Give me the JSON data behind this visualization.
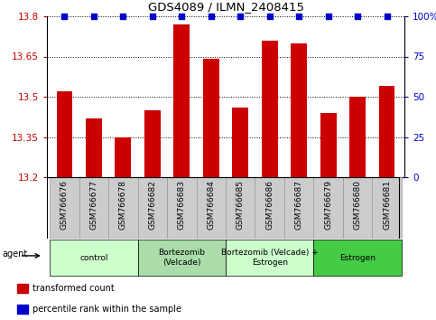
{
  "title": "GDS4089 / ILMN_2408415",
  "samples": [
    "GSM766676",
    "GSM766677",
    "GSM766678",
    "GSM766682",
    "GSM766683",
    "GSM766684",
    "GSM766685",
    "GSM766686",
    "GSM766687",
    "GSM766679",
    "GSM766680",
    "GSM766681"
  ],
  "bar_values": [
    13.52,
    13.42,
    13.35,
    13.45,
    13.77,
    13.64,
    13.46,
    13.71,
    13.7,
    13.44,
    13.5,
    13.54
  ],
  "percentile_values": [
    100,
    100,
    100,
    100,
    100,
    100,
    100,
    100,
    100,
    100,
    100,
    100
  ],
  "bar_color": "#cc0000",
  "percentile_color": "#0000cc",
  "ylim_left": [
    13.2,
    13.8
  ],
  "ylim_right": [
    0,
    100
  ],
  "yticks_left": [
    13.2,
    13.35,
    13.5,
    13.65,
    13.8
  ],
  "yticks_right": [
    0,
    25,
    50,
    75,
    100
  ],
  "ytick_labels_left": [
    "13.2",
    "13.35",
    "13.5",
    "13.65",
    "13.8"
  ],
  "ytick_labels_right": [
    "0",
    "25",
    "50",
    "75",
    "100%"
  ],
  "groups": [
    {
      "label": "control",
      "start": 0,
      "end": 3,
      "color": "#ccffcc"
    },
    {
      "label": "Bortezomib\n(Velcade)",
      "start": 3,
      "end": 6,
      "color": "#aaddaa"
    },
    {
      "label": "Bortezomib (Velcade) +\nEstrogen",
      "start": 6,
      "end": 9,
      "color": "#ccffcc"
    },
    {
      "label": "Estrogen",
      "start": 9,
      "end": 12,
      "color": "#44cc44"
    }
  ],
  "agent_label": "agent",
  "legend_items": [
    {
      "label": "transformed count",
      "color": "#cc0000"
    },
    {
      "label": "percentile rank within the sample",
      "color": "#0000cc"
    }
  ],
  "bar_width": 0.55,
  "base_value": 13.2,
  "tick_bg_color": "#cccccc",
  "tick_border_color": "#999999"
}
